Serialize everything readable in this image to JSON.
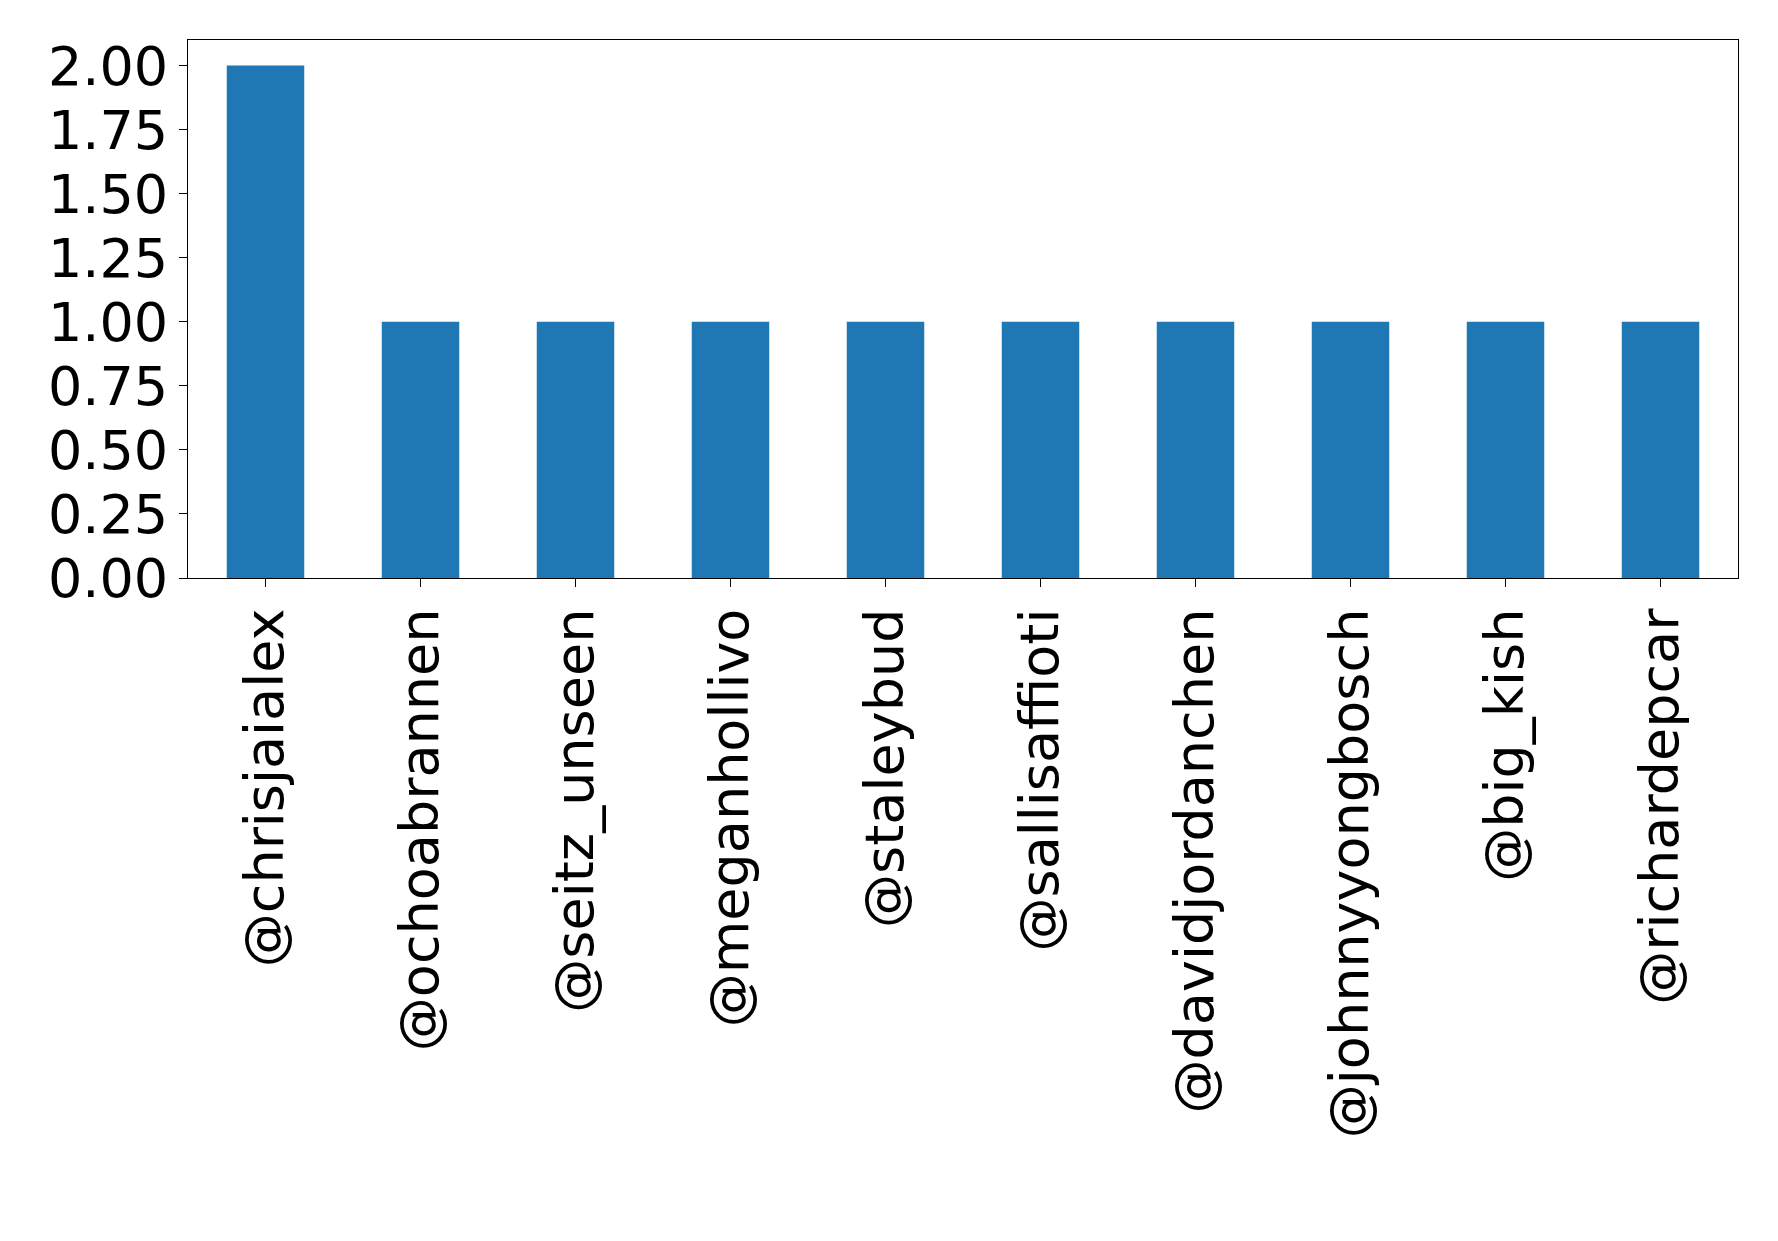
{
  "chart_data": {
    "type": "bar",
    "categories": [
      "@chrisjaialex",
      "@ochoabrannen",
      "@seitz_unseen",
      "@meganhollivo",
      "@staleybud",
      "@sallisaffioti",
      "@davidjordanchen",
      "@johnnyyongbosch",
      "@big_kish",
      "@richardepcar"
    ],
    "values": [
      2,
      1,
      1,
      1,
      1,
      1,
      1,
      1,
      1,
      1
    ],
    "color": "#1f77b4",
    "ylim": [
      0,
      2.1
    ],
    "yticks": [
      {
        "value": 0,
        "label": "0.00"
      },
      {
        "value": 0.25,
        "label": "0.25"
      },
      {
        "value": 0.5,
        "label": "0.50"
      },
      {
        "value": 0.75,
        "label": "0.75"
      },
      {
        "value": 1,
        "label": "1.00"
      },
      {
        "value": 1.25,
        "label": "1.25"
      },
      {
        "value": 1.5,
        "label": "1.50"
      },
      {
        "value": 1.75,
        "label": "1.75"
      },
      {
        "value": 2,
        "label": "2.00"
      }
    ],
    "tick_labels": true
  }
}
